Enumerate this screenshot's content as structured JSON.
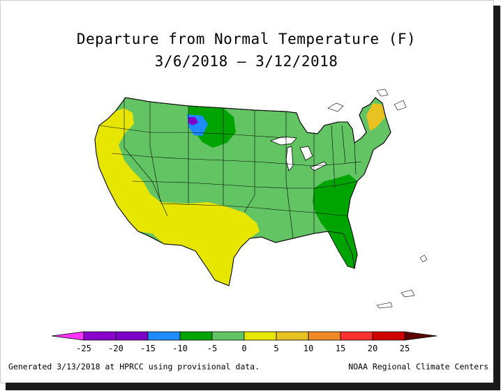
{
  "title_line1": "Departure from Normal Temperature (F)",
  "title_line2": "3/6/2018 – 3/12/2018",
  "legend": {
    "ticks": [
      "-25",
      "-20",
      "-15",
      "-10",
      "-5",
      "0",
      "5",
      "10",
      "15",
      "20",
      "25"
    ],
    "colors": [
      "#8a00cc",
      "#7d00c8",
      "#1e8cff",
      "#00a400",
      "#62c462",
      "#e6e600",
      "#e8c220",
      "#f08a28",
      "#ff3030",
      "#d00000",
      "#8b0000"
    ],
    "low_arrow_color": "#ff33ff",
    "high_arrow_color": "#5c0000"
  },
  "map_colors": {
    "green_dark": "#00a400",
    "green_light": "#62c462",
    "yellow": "#e6e600",
    "orange_yellow": "#e8c220",
    "blue": "#1e8cff",
    "purple": "#7d00c8",
    "water": "#ffffff",
    "border": "#000000"
  },
  "footer_left": "Generated 3/13/2018 at HPRCC using provisional data.",
  "footer_right": "NOAA Regional Climate Centers"
}
